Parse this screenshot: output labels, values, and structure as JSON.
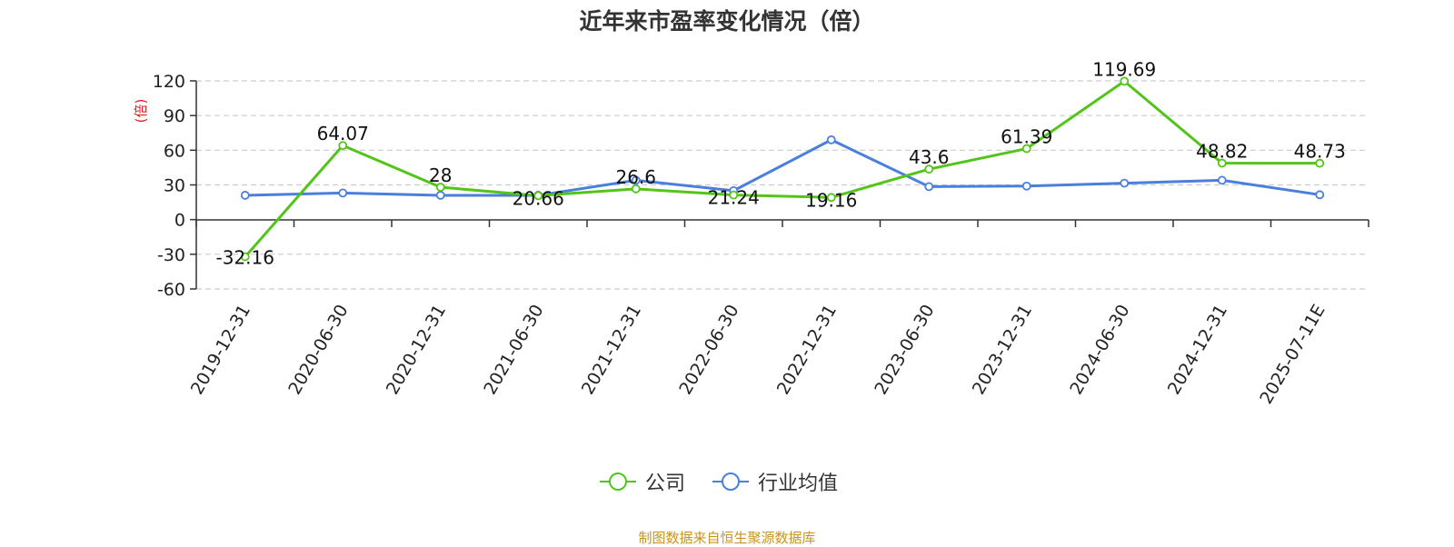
{
  "chart_data": {
    "type": "line",
    "title": "近年来市盈率变化情况（倍）",
    "ylabel": "(倍)",
    "xlabel": "",
    "ylim": [
      -60,
      120
    ],
    "yticks": [
      -60,
      -30,
      0,
      30,
      60,
      90,
      120
    ],
    "grid": true,
    "legend_position": "bottom",
    "categories": [
      "2019-12-31",
      "2020-06-30",
      "2020-12-31",
      "2021-06-30",
      "2021-12-31",
      "2022-06-30",
      "2022-12-31",
      "2023-06-30",
      "2023-12-31",
      "2024-06-30",
      "2024-12-31",
      "2025-07-11E"
    ],
    "series": [
      {
        "name": "公司",
        "color": "#52c41a",
        "values": [
          -32.16,
          64.07,
          28,
          20.66,
          26.6,
          21.24,
          19.16,
          43.6,
          61.39,
          119.69,
          48.82,
          48.73
        ],
        "labels": [
          "-32.16",
          "64.07",
          "28",
          "20.66",
          "26.6",
          "21.24",
          "19.16",
          "43.6",
          "61.39",
          "119.69",
          "48.82",
          "48.73"
        ]
      },
      {
        "name": "行业均值",
        "color": "#4a7fdd",
        "values": [
          21,
          23,
          21,
          21,
          34,
          25,
          69,
          28.5,
          29,
          31.5,
          34,
          21.5
        ]
      }
    ]
  },
  "colors": {
    "ylabel": "#e02020",
    "axis": "#333333",
    "grid": "#cccccc",
    "source": "#c8941e"
  },
  "source_note": "制图数据来自恒生聚源数据库"
}
